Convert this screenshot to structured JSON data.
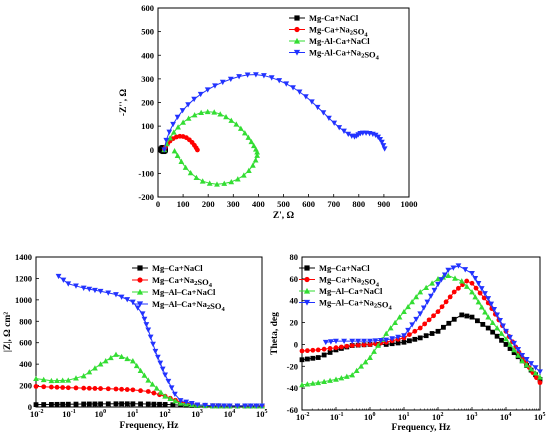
{
  "charts": [
    {
      "id": "nyquist",
      "type": "scatter",
      "xlabel": "Z', Ω",
      "ylabel": "-Z'', Ω",
      "xlim": [
        0,
        1000
      ],
      "ylim": [
        -200,
        600
      ],
      "xticks": [
        "0",
        "100",
        "200",
        "300",
        "400",
        "500",
        "600",
        "700",
        "800",
        "900",
        "1000"
      ],
      "yticks": [
        "-200",
        "-100",
        "0",
        "100",
        "200",
        "300",
        "400",
        "500",
        "600"
      ],
      "legend_position": "top-right",
      "legend": [
        "Mg-Ca+NaCl",
        "Mg-Ca+Na2SO4",
        "Mg-Al-Ca+NaCl",
        "Mg-Al-Ca+Na2SO4"
      ]
    },
    {
      "id": "bode-modulus",
      "type": "scatter",
      "xlabel": "Frequency, Hz",
      "ylabel": "|Z|, Ω cm²",
      "xscale": "log",
      "xlim": [
        0.01,
        100000
      ],
      "ylim": [
        0,
        1400
      ],
      "xticks": [
        "10-2",
        "10-1",
        "100",
        "101",
        "102",
        "103",
        "104",
        "105"
      ],
      "yticks": [
        "0",
        "200",
        "400",
        "600",
        "800",
        "1000",
        "1200",
        "1400"
      ],
      "legend_position": "right",
      "legend": [
        "Mg–Ca+NaCl",
        "Mg–Ca+Na2SO4",
        "Mg–Al–Ca+NaCl",
        "Mg–Al–Ca+Na2SO4"
      ]
    },
    {
      "id": "bode-phase",
      "type": "scatter",
      "xlabel": "Frequency, Hz",
      "ylabel": "Theta, deg",
      "xscale": "log",
      "xlim": [
        0.01,
        100000
      ],
      "ylim": [
        -60,
        80
      ],
      "xticks": [
        "10-2",
        "10-1",
        "100",
        "101",
        "102",
        "103",
        "104",
        "105"
      ],
      "yticks": [
        "-60",
        "-40",
        "-20",
        "0",
        "20",
        "40",
        "60",
        "80"
      ],
      "legend_position": "top-left",
      "legend": [
        "Mg–Ca+NaCl",
        "Mg–Ca+Na2SO4",
        "Mg–Al–Ca+NaCl",
        "Mg–Al–Ca+Na2SO4"
      ]
    }
  ],
  "series_style": [
    {
      "color": "#000000",
      "marker": "square"
    },
    {
      "color": "#ff0000",
      "marker": "circle"
    },
    {
      "color": "#33dd33",
      "marker": "triangle-up"
    },
    {
      "color": "#2233ff",
      "marker": "triangle-down"
    }
  ],
  "chart_data": [
    {
      "type": "scatter",
      "series": [
        {
          "name": "Mg-Ca+NaCl",
          "points": [
            [
              10,
              0
            ],
            [
              12,
              4
            ],
            [
              15,
              8
            ],
            [
              19,
              10
            ],
            [
              24,
              9
            ],
            [
              28,
              6
            ],
            [
              30,
              2
            ],
            [
              30,
              -2
            ],
            [
              27,
              -6
            ],
            [
              22,
              -8
            ],
            [
              17,
              -6
            ],
            [
              13,
              -3
            ]
          ]
        },
        {
          "name": "Mg-Ca+Na2SO4",
          "points": [
            [
              25,
              0
            ],
            [
              30,
              12
            ],
            [
              38,
              25
            ],
            [
              48,
              37
            ],
            [
              60,
              47
            ],
            [
              73,
              54
            ],
            [
              87,
              57
            ],
            [
              100,
              56
            ],
            [
              113,
              51
            ],
            [
              125,
              42
            ],
            [
              136,
              31
            ],
            [
              145,
              19
            ],
            [
              152,
              8
            ],
            [
              157,
              -1
            ]
          ]
        },
        {
          "name": "Mg-Al-Ca+NaCl",
          "points": [
            [
              25,
              0
            ],
            [
              35,
              25
            ],
            [
              48,
              50
            ],
            [
              63,
              74
            ],
            [
              80,
              96
            ],
            [
              100,
              116
            ],
            [
              122,
              133
            ],
            [
              146,
              147
            ],
            [
              172,
              157
            ],
            [
              198,
              161
            ],
            [
              224,
              159
            ],
            [
              248,
              151
            ],
            [
              271,
              139
            ],
            [
              292,
              124
            ],
            [
              312,
              108
            ],
            [
              330,
              90
            ],
            [
              346,
              71
            ],
            [
              360,
              52
            ],
            [
              372,
              34
            ],
            [
              382,
              17
            ],
            [
              390,
              2
            ],
            [
              395,
              -10
            ],
            [
              395,
              -24
            ],
            [
              389,
              -44
            ],
            [
              378,
              -66
            ],
            [
              362,
              -88
            ],
            [
              342,
              -108
            ],
            [
              318,
              -124
            ],
            [
              292,
              -136
            ],
            [
              264,
              -143
            ],
            [
              235,
              -146
            ],
            [
              206,
              -142
            ],
            [
              178,
              -133
            ],
            [
              153,
              -118
            ],
            [
              130,
              -98
            ],
            [
              110,
              -75
            ],
            [
              93,
              -50
            ],
            [
              78,
              -25
            ],
            [
              66,
              -5
            ]
          ]
        },
        {
          "name": "Mg-Al-Ca+Na2SO4",
          "points": [
            [
              25,
              0
            ],
            [
              33,
              40
            ],
            [
              45,
              75
            ],
            [
              60,
              108
            ],
            [
              78,
              138
            ],
            [
              98,
              166
            ],
            [
              120,
              191
            ],
            [
              144,
              214
            ],
            [
              170,
              235
            ],
            [
              198,
              254
            ],
            [
              227,
              271
            ],
            [
              258,
              286
            ],
            [
              290,
              299
            ],
            [
              323,
              310
            ],
            [
              357,
              317
            ],
            [
              390,
              318
            ],
            [
              422,
              314
            ],
            [
              453,
              305
            ],
            [
              483,
              293
            ],
            [
              511,
              279
            ],
            [
              538,
              263
            ],
            [
              564,
              245
            ],
            [
              589,
              225
            ],
            [
              613,
              203
            ],
            [
              636,
              180
            ],
            [
              659,
              157
            ],
            [
              681,
              134
            ],
            [
              702,
              113
            ],
            [
              722,
              94
            ],
            [
              741,
              79
            ],
            [
              758,
              66
            ],
            [
              772,
              58
            ],
            [
              783,
              55
            ],
            [
              791,
              58
            ],
            [
              798,
              64
            ],
            [
              806,
              69
            ],
            [
              816,
              71
            ],
            [
              829,
              71
            ],
            [
              843,
              69
            ],
            [
              856,
              66
            ],
            [
              867,
              62
            ],
            [
              877,
              54
            ],
            [
              885,
              44
            ],
            [
              892,
              32
            ],
            [
              898,
              18
            ],
            [
              903,
              4
            ]
          ]
        }
      ]
    },
    {
      "type": "scatter",
      "series": [
        {
          "name": "Mg–Ca+NaCl",
          "x": [
            0.01,
            0.03,
            0.1,
            0.3,
            1,
            3,
            10,
            30,
            100,
            300,
            1000,
            3000,
            10000,
            30000,
            100000
          ],
          "y": [
            22,
            24,
            26,
            28,
            29,
            30,
            30,
            28,
            24,
            18,
            13,
            11,
            10,
            10,
            10
          ]
        },
        {
          "name": "Mg–Ca+Na2SO4",
          "x": [
            0.01,
            0.03,
            0.1,
            0.3,
            1,
            3,
            10,
            30,
            100,
            300,
            1000,
            3000,
            10000,
            30000,
            100000
          ],
          "y": [
            192,
            186,
            180,
            176,
            172,
            168,
            160,
            145,
            100,
            45,
            20,
            12,
            10,
            10,
            10
          ]
        },
        {
          "name": "Mg–Al–Ca+NaCl",
          "x": [
            0.01,
            0.03,
            0.1,
            0.3,
            1,
            3,
            10,
            30,
            100,
            300,
            1000,
            3000,
            10000,
            30000,
            100000
          ],
          "y": [
            265,
            245,
            250,
            290,
            400,
            490,
            430,
            250,
            100,
            35,
            15,
            10,
            10,
            10,
            10
          ]
        },
        {
          "name": "Mg–Al–Ca+Na2SO4",
          "x": [
            0.05,
            0.1,
            0.3,
            1,
            3,
            10,
            20,
            30,
            50,
            100,
            200,
            300,
            1000,
            3000,
            10000,
            30000,
            100000
          ],
          "y": [
            1220,
            1150,
            1110,
            1080,
            1050,
            980,
            870,
            720,
            520,
            300,
            120,
            60,
            20,
            12,
            10,
            10,
            10
          ]
        }
      ]
    },
    {
      "type": "scatter",
      "series": [
        {
          "name": "Mg–Ca+NaCl",
          "x": [
            0.01,
            0.03,
            0.1,
            0.3,
            1,
            3,
            10,
            30,
            100,
            300,
            500,
            1000,
            3000,
            10000,
            30000,
            100000
          ],
          "y": [
            -14,
            -12,
            -5,
            -1,
            0,
            0,
            2,
            6,
            12,
            23,
            27,
            25,
            15,
            0,
            -15,
            -32
          ]
        },
        {
          "name": "Mg–Ca+Na2SO4",
          "x": [
            0.01,
            0.03,
            0.1,
            0.3,
            1,
            3,
            10,
            30,
            100,
            300,
            700,
            1000,
            3000,
            10000,
            30000,
            100000
          ],
          "y": [
            -6,
            -5,
            -3,
            -1,
            0,
            2,
            6,
            15,
            30,
            48,
            58,
            56,
            38,
            12,
            -12,
            -35
          ]
        },
        {
          "name": "Mg–Al–Ca+NaCl",
          "x": [
            0.01,
            0.03,
            0.1,
            0.3,
            1,
            3,
            10,
            30,
            100,
            200,
            500,
            1000,
            3000,
            10000,
            30000,
            100000
          ],
          "y": [
            -37,
            -35,
            -32,
            -28,
            -12,
            10,
            30,
            48,
            60,
            63,
            58,
            48,
            25,
            5,
            -15,
            -30
          ]
        },
        {
          "name": "Mg–Al–Ca+Na2SO4",
          "x": [
            0.05,
            0.1,
            0.3,
            1,
            3,
            10,
            30,
            100,
            200,
            400,
            1000,
            3000,
            10000,
            30000,
            100000
          ],
          "y": [
            2,
            3,
            3,
            3,
            4,
            8,
            28,
            55,
            68,
            72,
            65,
            42,
            12,
            -10,
            -25
          ]
        }
      ]
    }
  ]
}
